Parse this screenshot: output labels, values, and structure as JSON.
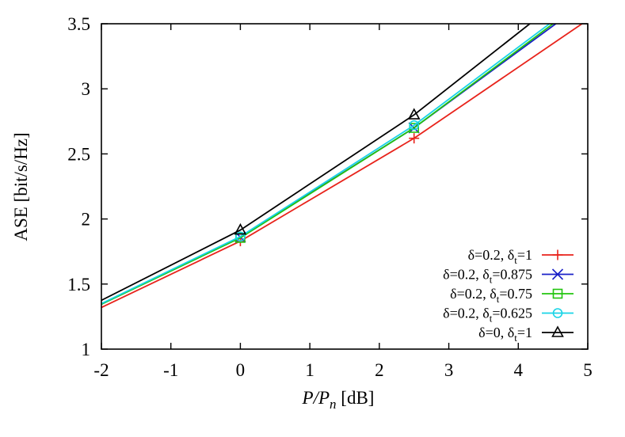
{
  "chart_data": {
    "type": "line",
    "title": "",
    "xlabel": {
      "main": "P/P",
      "sub": "n",
      "unit": " [dB]"
    },
    "ylabel": "ASE [bit/s/Hz]",
    "xlim": [
      -2,
      5
    ],
    "ylim": [
      1,
      3.5
    ],
    "x_ticks": [
      "-2",
      "-1",
      "0",
      "1",
      "2",
      "3",
      "4",
      "5"
    ],
    "y_ticks": [
      "1",
      "1.5",
      "2",
      "2.5",
      "3",
      "3.5"
    ],
    "x_tick_values": [
      -2,
      -1,
      0,
      1,
      2,
      3,
      4,
      5
    ],
    "y_tick_values": [
      1,
      1.5,
      2,
      2.5,
      3,
      3.5
    ],
    "grid": false,
    "legend_position": "bottom-right",
    "x": [
      -2,
      0,
      2.5,
      5
    ],
    "series": [
      {
        "name": "δ=0.2, δt=1",
        "label_main": "δ=0.2, δ",
        "label_sub": "t",
        "label_tail": "=1",
        "color": "#e8231b",
        "marker": "plus",
        "values": [
          1.32,
          1.83,
          2.62,
          3.53
        ]
      },
      {
        "name": "δ=0.2, δt=0.875",
        "label_main": "δ=0.2, δ",
        "label_sub": "t",
        "label_tail": "=0.875",
        "color": "#1a20c8",
        "marker": "cross",
        "values": [
          1.345,
          1.86,
          2.7,
          3.68
        ]
      },
      {
        "name": "δ=0.2, δt=0.75",
        "label_main": "δ=0.2, δ",
        "label_sub": "t",
        "label_tail": "=0.75",
        "color": "#22c40f",
        "marker": "square",
        "values": [
          1.345,
          1.855,
          2.7,
          3.7
        ]
      },
      {
        "name": "δ=0.2, δt=0.625",
        "label_main": "δ=0.2, δ",
        "label_sub": "t",
        "label_tail": "=0.625",
        "color": "#18d4e6",
        "marker": "circle",
        "values": [
          1.35,
          1.865,
          2.72,
          3.72
        ]
      },
      {
        "name": "δ=0, δt=1",
        "label_main": "δ=0, δ",
        "label_sub": "t",
        "label_tail": "=1",
        "color": "#000000",
        "marker": "triangle",
        "values": [
          1.375,
          1.915,
          2.8,
          3.85
        ]
      }
    ]
  }
}
